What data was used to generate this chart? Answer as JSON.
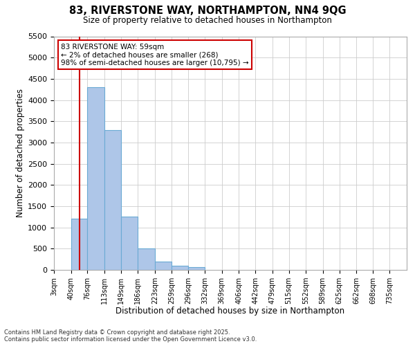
{
  "title": "83, RIVERSTONE WAY, NORTHAMPTON, NN4 9QG",
  "subtitle": "Size of property relative to detached houses in Northampton",
  "xlabel": "Distribution of detached houses by size in Northampton",
  "ylabel": "Number of detached properties",
  "categories": [
    "3sqm",
    "40sqm",
    "76sqm",
    "113sqm",
    "149sqm",
    "186sqm",
    "223sqm",
    "259sqm",
    "296sqm",
    "332sqm",
    "369sqm",
    "406sqm",
    "442sqm",
    "479sqm",
    "515sqm",
    "552sqm",
    "589sqm",
    "625sqm",
    "662sqm",
    "698sqm",
    "735sqm"
  ],
  "values": [
    0,
    1200,
    4300,
    3300,
    1250,
    500,
    200,
    100,
    60,
    0,
    0,
    0,
    0,
    0,
    0,
    0,
    0,
    0,
    0,
    0,
    0
  ],
  "bar_color": "#aec6e8",
  "bar_edge_color": "#6aaad4",
  "ylim": [
    0,
    5500
  ],
  "yticks": [
    0,
    500,
    1000,
    1500,
    2000,
    2500,
    3000,
    3500,
    4000,
    4500,
    5000,
    5500
  ],
  "annotation_line1": "83 RIVERSTONE WAY: 59sqm",
  "annotation_line2": "← 2% of detached houses are smaller (268)",
  "annotation_line3": "98% of semi-detached houses are larger (10,795) →",
  "annotation_box_color": "#ffffff",
  "annotation_box_edge": "#cc0000",
  "vline_color": "#cc0000",
  "vline_x": 59,
  "footer_line1": "Contains HM Land Registry data © Crown copyright and database right 2025.",
  "footer_line2": "Contains public sector information licensed under the Open Government Licence v3.0.",
  "background_color": "#ffffff",
  "grid_color": "#cccccc"
}
